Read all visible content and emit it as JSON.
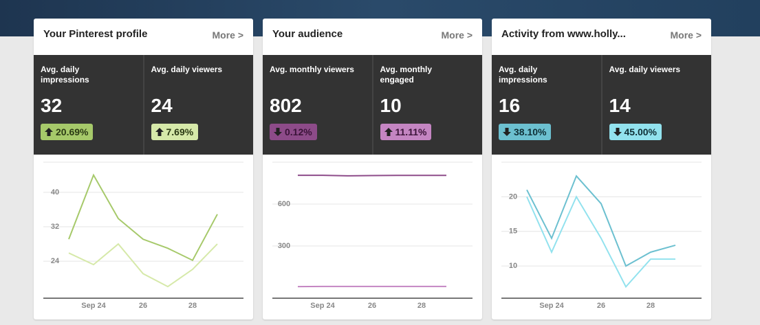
{
  "cards": [
    {
      "title": "Your Pinterest profile",
      "more": "More >",
      "stats": [
        {
          "label": "Avg. daily impressions",
          "value": "32",
          "change": "20.69%",
          "direction": "up",
          "color": "#a6c96a",
          "text_color": "#2b3a14"
        },
        {
          "label": "Avg. daily viewers",
          "value": "24",
          "change": "7.69%",
          "direction": "up",
          "color": "#d6e9a9",
          "text_color": "#2b3a14"
        }
      ],
      "chart": {
        "type": "line",
        "categories": [
          null,
          "Sep 24",
          null,
          "26",
          null,
          "28",
          null
        ],
        "ylim": [
          15.4,
          47
        ],
        "yticks": [
          24,
          32,
          40
        ],
        "series": [
          {
            "color": "#a6c96a",
            "values": [
              29.1,
              44,
              33.9,
              29.1,
              27,
              24.2,
              34.9
            ]
          },
          {
            "color": "#d6e9a9",
            "values": [
              25.9,
              23.2,
              28,
              21.1,
              18.1,
              22.1,
              28
            ]
          }
        ]
      }
    },
    {
      "title": "Your audience",
      "more": "More >",
      "stats": [
        {
          "label": "Avg. monthly viewers",
          "value": "802",
          "change": "0.12%",
          "direction": "down",
          "color": "#8d4b89",
          "text_color": "#3a1338"
        },
        {
          "label": "Avg. monthly engaged",
          "value": "10",
          "change": "11.11%",
          "direction": "up",
          "color": "#c485c2",
          "text_color": "#3a1338"
        }
      ],
      "chart": {
        "type": "line",
        "categories": [
          null,
          "Sep 24",
          null,
          "26",
          null,
          "28",
          null
        ],
        "ylim": [
          -74,
          900
        ],
        "yticks": [
          300,
          600
        ],
        "series": [
          {
            "color": "#8d4b89",
            "values": [
              806,
              806,
              802,
              804,
              805,
              805,
              805
            ]
          },
          {
            "color": "#c485c2",
            "values": [
              9,
              10,
              10,
              10,
              10,
              10,
              10
            ]
          }
        ]
      }
    },
    {
      "title": "Activity from www.holly...",
      "more": "More >",
      "stats": [
        {
          "label": "Avg. daily impressions",
          "value": "16",
          "change": "38.10%",
          "direction": "down",
          "color": "#6cc0d0",
          "text_color": "#0f2f36"
        },
        {
          "label": "Avg. daily viewers",
          "value": "14",
          "change": "45.00%",
          "direction": "down",
          "color": "#92e2ee",
          "text_color": "#0f2f36"
        }
      ],
      "chart": {
        "type": "line",
        "categories": [
          null,
          "Sep 24",
          null,
          "26",
          null,
          "28",
          null
        ],
        "ylim": [
          5.35,
          25
        ],
        "yticks": [
          10,
          15,
          20
        ],
        "series": [
          {
            "color": "#6cc0d0",
            "values": [
              21,
              14,
              23,
              19,
              10,
              12,
              13
            ]
          },
          {
            "color": "#92e2ee",
            "values": [
              20,
              12,
              20,
              14,
              7,
              11,
              11
            ]
          }
        ]
      }
    }
  ]
}
